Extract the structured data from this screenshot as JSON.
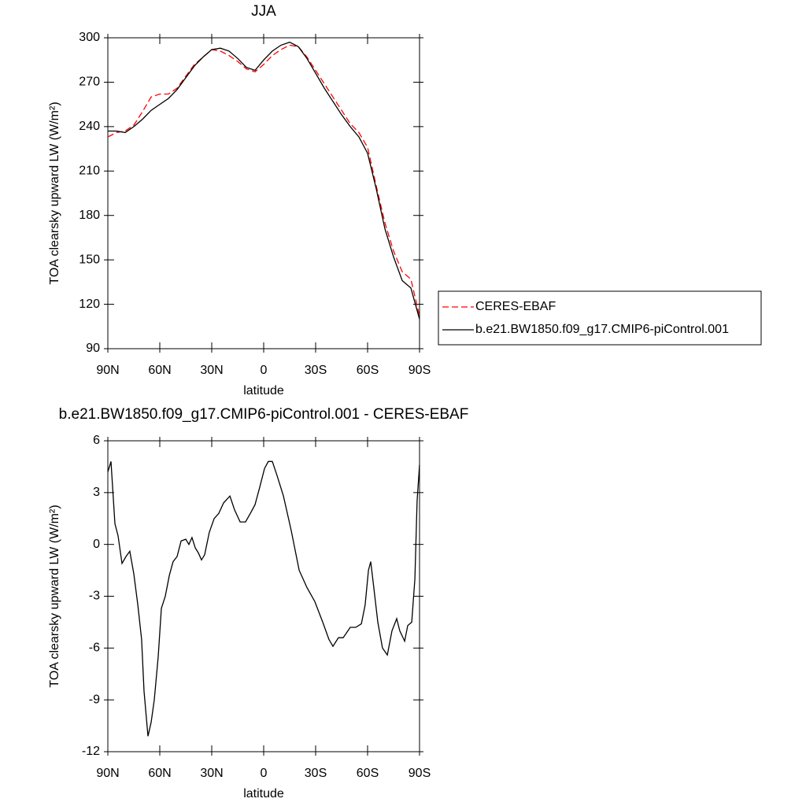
{
  "chart_data": [
    {
      "type": "line",
      "title": "JJA",
      "xlabel": "latitude",
      "ylabel": "TOA clearsky upward LW (W/m²)",
      "xlim": [
        90,
        -90
      ],
      "xticks": [
        {
          "value": 90,
          "label": "90N"
        },
        {
          "value": 60,
          "label": "60N"
        },
        {
          "value": 30,
          "label": "30N"
        },
        0,
        {
          "value": -30,
          "label": "30S"
        },
        {
          "value": -60,
          "label": "60S"
        },
        {
          "value": -90,
          "label": "90S"
        }
      ],
      "ylim": [
        90,
        300
      ],
      "yticks": [
        90,
        120,
        150,
        180,
        210,
        240,
        270,
        300
      ],
      "legend": "right",
      "x": [
        90,
        85,
        80,
        75,
        70,
        65,
        60,
        55,
        50,
        45,
        40,
        35,
        30,
        25,
        20,
        15,
        10,
        5,
        0,
        -5,
        -10,
        -15,
        -20,
        -25,
        -30,
        -35,
        -40,
        -45,
        -50,
        -55,
        -60,
        -65,
        -70,
        -75,
        -80,
        -85,
        -90
      ],
      "series": [
        {
          "name": "CERES-EBAF",
          "color": "#ff0000",
          "style": "dashed",
          "values": [
            233,
            236,
            237,
            241,
            250,
            260,
            262,
            262,
            266,
            274,
            282,
            287,
            292,
            291,
            288,
            284,
            279,
            277,
            282,
            288,
            292,
            295,
            294,
            287,
            278,
            269,
            260,
            251,
            242,
            236,
            226,
            200,
            175,
            156,
            142,
            137,
            112
          ]
        },
        {
          "name": "b.e21.BW1850.f09_g17.CMIP6-piControl.001",
          "color": "#000000",
          "style": "solid",
          "values": [
            237,
            237,
            236,
            240,
            245,
            251,
            255,
            259,
            265,
            273,
            281,
            287,
            292,
            293,
            291,
            286,
            280,
            278,
            285,
            291,
            295,
            297,
            294,
            286,
            276,
            266,
            257,
            248,
            240,
            233,
            222,
            198,
            171,
            152,
            136,
            131,
            110
          ]
        }
      ]
    },
    {
      "type": "line",
      "title": "b.e21.BW1850.f09_g17.CMIP6-piControl.001 - CERES-EBAF",
      "xlabel": "latitude",
      "ylabel": "TOA clearsky upward LW (W/m²)",
      "xlim": [
        90,
        -90
      ],
      "xticks": [
        {
          "value": 90,
          "label": "90N"
        },
        {
          "value": 60,
          "label": "60N"
        },
        {
          "value": 30,
          "label": "30N"
        },
        0,
        {
          "value": -30,
          "label": "30S"
        },
        {
          "value": -60,
          "label": "60S"
        },
        {
          "value": -90,
          "label": "90S"
        }
      ],
      "ylim": [
        -12,
        6
      ],
      "yticks": [
        -12,
        -9,
        -6,
        -3,
        0,
        3,
        6
      ],
      "x": [
        90,
        88.2,
        85.9,
        84.1,
        81.8,
        79.5,
        77.3,
        75,
        72.7,
        70.5,
        69.1,
        66.8,
        65,
        63.2,
        60.9,
        59.1,
        56.8,
        54.5,
        52.3,
        50,
        47.7,
        45,
        43.2,
        41.4,
        39.5,
        37.7,
        35.9,
        34.1,
        31.4,
        28.6,
        25.9,
        23.2,
        19.5,
        16.8,
        13.6,
        10.5,
        7.7,
        5,
        2.3,
        -0.5,
        -2.7,
        -5,
        -7.7,
        -11.4,
        -15.9,
        -20.5,
        -25,
        -29.5,
        -34.1,
        -37.7,
        -40,
        -43.2,
        -45.9,
        -50,
        -53.2,
        -56.4,
        -58.6,
        -60.5,
        -61.8,
        -63.6,
        -65.9,
        -68.6,
        -71.4,
        -74.1,
        -76.8,
        -78.6,
        -81.4,
        -83.2,
        -85.5,
        -87.3,
        -88.6,
        -90
      ],
      "series": [
        {
          "color": "#000000",
          "style": "solid",
          "values": [
            4.2,
            4.8,
            1.2,
            0.5,
            -1.1,
            -0.7,
            -0.4,
            -1.7,
            -3.5,
            -5.5,
            -8.5,
            -11.1,
            -10.3,
            -9.0,
            -6.5,
            -3.7,
            -3.0,
            -1.8,
            -1.0,
            -0.7,
            0.2,
            0.3,
            0.0,
            0.4,
            -0.2,
            -0.5,
            -0.9,
            -0.6,
            0.7,
            1.5,
            1.8,
            2.4,
            2.8,
            2.0,
            1.3,
            1.3,
            1.8,
            2.3,
            3.3,
            4.4,
            4.8,
            4.8,
            4.0,
            2.8,
            0.8,
            -1.5,
            -2.5,
            -3.3,
            -4.5,
            -5.5,
            -5.9,
            -5.4,
            -5.4,
            -4.8,
            -4.8,
            -4.6,
            -3.5,
            -1.5,
            -1.0,
            -2.5,
            -4.5,
            -6.0,
            -6.4,
            -5.0,
            -4.3,
            -5.0,
            -5.6,
            -4.7,
            -4.5,
            -2.0,
            2.5,
            4.6
          ]
        }
      ]
    }
  ]
}
